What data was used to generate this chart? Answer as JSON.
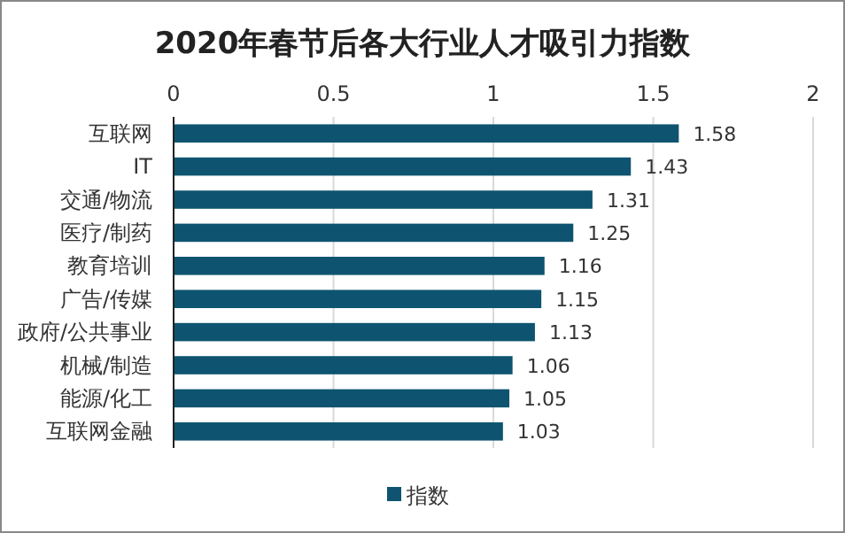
{
  "chart_data": {
    "type": "bar",
    "orientation": "horizontal",
    "title": "2020年春节后各大行业人才吸引力指数",
    "categories": [
      "互联网",
      "IT",
      "交通/物流",
      "医疗/制药",
      "教育培训",
      "广告/传媒",
      "政府/公共事业",
      "机械/制造",
      "能源/化工",
      "互联网金融"
    ],
    "series": [
      {
        "name": "指数",
        "color": "#0e5470",
        "values": [
          1.58,
          1.43,
          1.31,
          1.25,
          1.16,
          1.15,
          1.13,
          1.06,
          1.05,
          1.03
        ]
      }
    ],
    "xlim": [
      0,
      2
    ],
    "xticks": [
      0,
      0.5,
      1,
      1.5,
      2
    ],
    "grid": "x",
    "legend": "bottom",
    "data_labels": true
  }
}
